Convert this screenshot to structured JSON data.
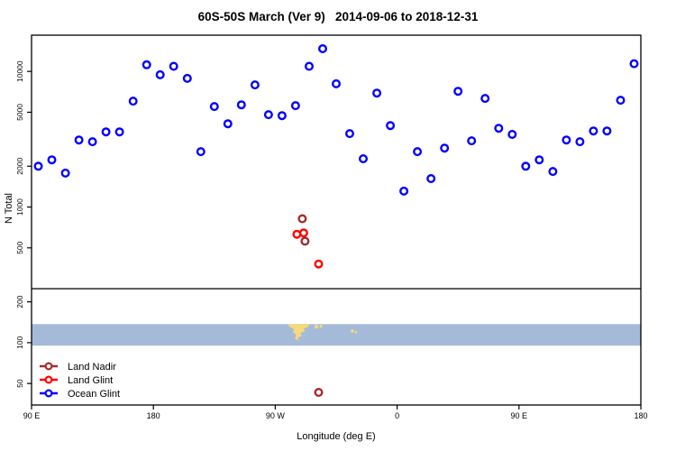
{
  "title": "60S-50S March (Ver 9)   2014-09-06 to 2018-12-31",
  "chart_data": {
    "type": "scatter",
    "title": "60S-50S March (Ver 9)   2014-09-06 to 2018-12-31",
    "xlabel": "Longitude (deg E)",
    "ylabel": "N Total",
    "x_axis": {
      "min": 90,
      "max": 540,
      "note": "longitude axis wraps eastward from 90E through 180, 90W, 0, back to 180",
      "ticks": [
        {
          "value": 90,
          "label": "90 E"
        },
        {
          "value": 180,
          "label": "180"
        },
        {
          "value": 270,
          "label": "90 W"
        },
        {
          "value": 360,
          "label": "0"
        },
        {
          "value": 450,
          "label": "90 E"
        },
        {
          "value": 540,
          "label": "180"
        }
      ]
    },
    "y_axis": {
      "scale": "log",
      "min": 34.7,
      "max": 18500,
      "ticks": [
        50,
        100,
        200,
        500,
        1000,
        2000,
        5000,
        10000
      ]
    },
    "separator_value": 250,
    "series": [
      {
        "name": "Land Nadir",
        "color": "#A52A2A",
        "points": [
          [
            290,
            820
          ],
          [
            292,
            560
          ],
          [
            302,
            43
          ]
        ]
      },
      {
        "name": "Land Glint",
        "color": "#FF0000",
        "points": [
          [
            286,
            630
          ],
          [
            291,
            645
          ],
          [
            302,
            380
          ]
        ]
      },
      {
        "name": "Ocean Glint",
        "color": "#0000FF",
        "points": [
          [
            95,
            2000
          ],
          [
            105,
            2230
          ],
          [
            115,
            1780
          ],
          [
            125,
            3120
          ],
          [
            135,
            3030
          ],
          [
            145,
            3580
          ],
          [
            155,
            3580
          ],
          [
            165,
            6040
          ],
          [
            175,
            11200
          ],
          [
            185,
            9440
          ],
          [
            195,
            10900
          ],
          [
            205,
            8890
          ],
          [
            215,
            2560
          ],
          [
            225,
            5510
          ],
          [
            235,
            4110
          ],
          [
            245,
            5670
          ],
          [
            255,
            7960
          ],
          [
            265,
            4800
          ],
          [
            275,
            4720
          ],
          [
            285,
            5590
          ],
          [
            295,
            10900
          ],
          [
            305,
            14700
          ],
          [
            315,
            8110
          ],
          [
            325,
            3480
          ],
          [
            335,
            2270
          ],
          [
            345,
            6920
          ],
          [
            355,
            3990
          ],
          [
            365,
            1310
          ],
          [
            375,
            2560
          ],
          [
            385,
            1620
          ],
          [
            395,
            2720
          ],
          [
            405,
            7140
          ],
          [
            415,
            3080
          ],
          [
            425,
            6320
          ],
          [
            435,
            3810
          ],
          [
            445,
            3430
          ],
          [
            455,
            2000
          ],
          [
            465,
            2230
          ],
          [
            475,
            1830
          ],
          [
            485,
            3120
          ],
          [
            495,
            3030
          ],
          [
            505,
            3640
          ],
          [
            515,
            3640
          ],
          [
            525,
            6130
          ],
          [
            535,
            11400
          ]
        ]
      }
    ],
    "map_band": {
      "y_top_value": 137,
      "y_bottom_value": 95,
      "ocean_color": "#A5BAD8",
      "land_color": "#F6D97B",
      "land_polygons": [
        [
          [
            279.5,
            0.0
          ],
          [
            295,
            0.0
          ],
          [
            294.5,
            0.12
          ],
          [
            291,
            0.2
          ],
          [
            292,
            0.32
          ],
          [
            288.5,
            0.42
          ],
          [
            289.5,
            0.55
          ],
          [
            286.5,
            0.64
          ],
          [
            287.5,
            0.78
          ],
          [
            284.5,
            0.68
          ],
          [
            285.5,
            0.5
          ],
          [
            283,
            0.38
          ],
          [
            284,
            0.24
          ],
          [
            280.5,
            0.12
          ]
        ]
      ],
      "land_dots": [
        [
          300.4,
          0.12,
          2.2
        ],
        [
          303.7,
          0.1,
          1.6
        ],
        [
          327,
          0.32,
          1.8
        ],
        [
          329.6,
          0.37,
          1.3
        ]
      ]
    },
    "legend_position": "bottom-left"
  },
  "legend": {
    "items": [
      {
        "label": "Land Nadir",
        "color": "#A52A2A"
      },
      {
        "label": "Land Glint",
        "color": "#FF0000"
      },
      {
        "label": "Ocean Glint",
        "color": "#0000FF"
      }
    ]
  }
}
